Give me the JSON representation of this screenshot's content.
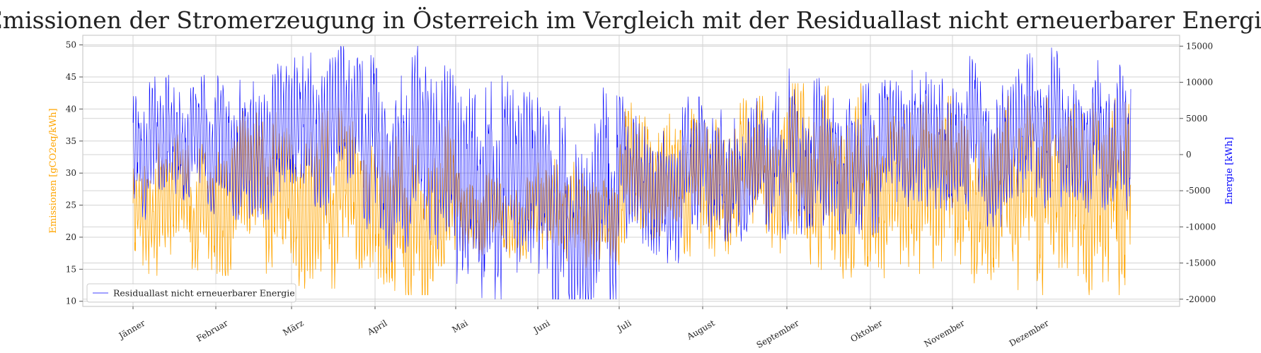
{
  "chart_data": {
    "type": "line",
    "title": "Emissionen der Stromerzeugung in Österreich im Vergleich mit der Residuallast nicht erneuerbarer Energie",
    "xlabel": "",
    "x_tick_labels": [
      "Jänner",
      "Februar",
      "März",
      "April",
      "Mai",
      "Juni",
      "Juli",
      "August",
      "September",
      "Oktober",
      "November",
      "Dezember"
    ],
    "y_left": {
      "label": "Emissionen [gCO2eq/kWh]",
      "ylim": [
        9.2,
        51.5
      ],
      "ticks": [
        10,
        15,
        20,
        25,
        30,
        35,
        40,
        45,
        50
      ],
      "color": "#ffa500"
    },
    "y_right": {
      "label": "Energie [kWh]",
      "ylim": [
        -21000,
        16500
      ],
      "ticks": [
        -20000,
        -15000,
        -10000,
        -5000,
        0,
        5000,
        10000,
        15000
      ],
      "color": "#0000ff"
    },
    "series": [
      {
        "axis": "left",
        "color": "#ffa500",
        "monthly_profile": [
          {
            "month": "Jänner",
            "mean": 25,
            "min": 14,
            "max": 36
          },
          {
            "month": "Februar",
            "mean": 26,
            "min": 14,
            "max": 41
          },
          {
            "month": "März",
            "mean": 25,
            "min": 12,
            "max": 41
          },
          {
            "month": "April",
            "mean": 23,
            "min": 11,
            "max": 40
          },
          {
            "month": "Mai",
            "mean": 23,
            "min": 16,
            "max": 30
          },
          {
            "month": "Juni",
            "mean": 23,
            "min": 15,
            "max": 33
          },
          {
            "month": "Juli",
            "mean": 29,
            "min": 17,
            "max": 41
          },
          {
            "month": "August",
            "mean": 30,
            "min": 17,
            "max": 42
          },
          {
            "month": "September",
            "mean": 30,
            "min": 11,
            "max": 44
          },
          {
            "month": "Oktober",
            "mean": 28,
            "min": 11,
            "max": 42
          },
          {
            "month": "November",
            "mean": 27,
            "min": 11,
            "max": 42
          },
          {
            "month": "Dezember",
            "mean": 26,
            "min": 11,
            "max": 44
          }
        ]
      },
      {
        "name": "Residuallast nicht erneuerbarer Energie",
        "axis": "right",
        "color": "#0000ff",
        "monthly_profile": [
          {
            "month": "Jänner",
            "mean": 1000,
            "min": -9000,
            "max": 11000
          },
          {
            "month": "Februar",
            "mean": 2000,
            "min": -9000,
            "max": 15500
          },
          {
            "month": "März",
            "mean": 3000,
            "min": -11000,
            "max": 15000
          },
          {
            "month": "April",
            "mean": -1000,
            "min": -15000,
            "max": 15500
          },
          {
            "month": "Mai",
            "mean": -6000,
            "min": -20000,
            "max": 13000
          },
          {
            "month": "Juni",
            "mean": -8000,
            "min": -20000,
            "max": 13000
          },
          {
            "month": "Juli",
            "mean": -3000,
            "min": -15000,
            "max": 8000
          },
          {
            "month": "August",
            "mean": -3000,
            "min": -12000,
            "max": 10000
          },
          {
            "month": "September",
            "mean": -1000,
            "min": -11000,
            "max": 13000
          },
          {
            "month": "Oktober",
            "mean": 0,
            "min": -12000,
            "max": 13000
          },
          {
            "month": "November",
            "mean": 2000,
            "min": -10000,
            "max": 14000
          },
          {
            "month": "Dezember",
            "mean": 3000,
            "min": -8000,
            "max": 15000
          }
        ]
      }
    ],
    "grid": true,
    "legend": {
      "placement": "bottom-left",
      "entries": [
        "Residuallast nicht erneuerbarer Energie"
      ]
    }
  }
}
